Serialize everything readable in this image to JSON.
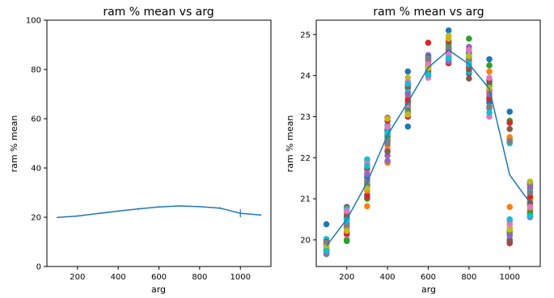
{
  "chart_data": [
    {
      "type": "line",
      "title": "ram % mean vs arg",
      "xlabel": "arg",
      "ylabel": "ram % mean",
      "xlim": [
        50,
        1150
      ],
      "ylim": [
        0,
        100
      ],
      "xticks": [
        200,
        400,
        600,
        800,
        1000
      ],
      "yticks": [
        0,
        20,
        40,
        60,
        80,
        100
      ],
      "grid": false,
      "series_color": "#1f77b4",
      "series": [
        {
          "x": [
            100,
            200,
            300,
            400,
            500,
            600,
            700,
            800,
            900,
            1000,
            1100
          ],
          "y": [
            19.9,
            20.5,
            21.5,
            22.5,
            23.4,
            24.2,
            24.6,
            24.3,
            23.7,
            21.6,
            20.9
          ],
          "err": [
            0.2,
            0.3,
            0.3,
            0.3,
            0.4,
            0.3,
            0.2,
            0.2,
            0.4,
            1.6,
            0.3
          ]
        }
      ]
    },
    {
      "type": "scatter",
      "title": "ram % mean vs arg",
      "xlabel": "arg",
      "ylabel": "ram % mean",
      "xlim": [
        50,
        1150
      ],
      "ylim": [
        19.35,
        25.35
      ],
      "xticks": [
        200,
        400,
        600,
        800,
        1000
      ],
      "yticks": [
        20,
        21,
        22,
        23,
        24,
        25
      ],
      "grid": false,
      "line_color": "#1f77b4",
      "line": {
        "x": [
          100,
          200,
          300,
          400,
          500,
          600,
          700,
          800,
          900,
          1000,
          1100
        ],
        "y": [
          19.85,
          20.5,
          21.4,
          22.55,
          23.35,
          24.2,
          24.62,
          24.28,
          23.68,
          21.58,
          20.9
        ]
      },
      "palette": [
        "#1f77b4",
        "#ff7f0e",
        "#2ca02c",
        "#d62728",
        "#9467bd",
        "#8c564b",
        "#e377c2",
        "#7f7f7f",
        "#bcbd22",
        "#17becf"
      ],
      "points": [
        {
          "x": 100,
          "ys": [
            20.38,
            19.98,
            19.7,
            19.92,
            19.8,
            19.74,
            19.88,
            19.65,
            19.78,
            20.02,
            19.9,
            19.72,
            19.84,
            19.95,
            19.68,
            19.76,
            19.86,
            19.93,
            19.82,
            19.73
          ]
        },
        {
          "x": 200,
          "ys": [
            20.55,
            20.3,
            20.0,
            20.2,
            20.45,
            20.8,
            20.12,
            20.35,
            20.65,
            20.75,
            20.5,
            20.25,
            19.97,
            20.15,
            20.4,
            20.6,
            20.7,
            20.33,
            20.22,
            20.48
          ]
        },
        {
          "x": 300,
          "ys": [
            21.1,
            20.82,
            21.0,
            21.3,
            21.5,
            21.7,
            21.65,
            21.45,
            21.9,
            21.96,
            21.55,
            21.2,
            21.35,
            21.05,
            21.6,
            21.75,
            21.85,
            21.4,
            21.25,
            21.8
          ]
        },
        {
          "x": 400,
          "ys": [
            22.5,
            21.88,
            22.4,
            22.97,
            21.92,
            22.65,
            22.2,
            22.45,
            22.6,
            22.8,
            22.7,
            22.3,
            22.55,
            22.9,
            22.05,
            22.15,
            22.75,
            22.35,
            22.95,
            22.6
          ]
        },
        {
          "x": 500,
          "ys": [
            22.76,
            23.5,
            23.3,
            23.0,
            23.25,
            23.7,
            23.2,
            23.35,
            23.95,
            23.6,
            24.1,
            23.45,
            23.15,
            23.4,
            23.55,
            23.75,
            23.85,
            23.1,
            23.05,
            23.8
          ]
        },
        {
          "x": 600,
          "ys": [
            24.0,
            24.2,
            24.35,
            24.8,
            24.5,
            24.1,
            23.95,
            24.25,
            24.4,
            24.15,
            24.45,
            24.3,
            24.05,
            24.22,
            24.38,
            24.12,
            24.28,
            24.42,
            24.18,
            24.02
          ]
        },
        {
          "x": 700,
          "ys": [
            25.1,
            24.4,
            24.5,
            24.3,
            24.7,
            24.6,
            24.8,
            24.5,
            24.97,
            24.45,
            24.65,
            24.55,
            24.75,
            24.85,
            24.35,
            24.62,
            24.52,
            24.68,
            24.9,
            24.42
          ]
        },
        {
          "x": 800,
          "ys": [
            24.05,
            24.6,
            24.9,
            24.2,
            24.5,
            23.93,
            24.3,
            24.4,
            24.65,
            24.1,
            24.55,
            24.35,
            24.45,
            24.25,
            24.7,
            24.15,
            24.62,
            24.38,
            24.48,
            24.28
          ]
        },
        {
          "x": 900,
          "ys": [
            24.4,
            24.1,
            24.25,
            23.65,
            23.4,
            23.9,
            23.0,
            23.2,
            23.5,
            23.8,
            23.35,
            23.6,
            23.75,
            23.45,
            23.55,
            23.85,
            23.95,
            23.25,
            23.7,
            23.1
          ]
        },
        {
          "x": 1000,
          "ys": [
            23.12,
            20.8,
            22.9,
            19.92,
            20.15,
            22.7,
            20.45,
            22.45,
            20.3,
            22.35,
            20.0,
            22.5,
            20.2,
            22.85,
            20.1,
            19.96,
            20.38,
            22.4,
            20.25,
            20.5
          ]
        },
        {
          "x": 1100,
          "ys": [
            21.4,
            21.0,
            20.85,
            21.25,
            20.55,
            20.7,
            21.1,
            20.6,
            20.95,
            21.2,
            21.35,
            20.75,
            20.65,
            21.05,
            21.3,
            20.9,
            20.8,
            21.15,
            21.42,
            20.58
          ]
        }
      ]
    }
  ]
}
